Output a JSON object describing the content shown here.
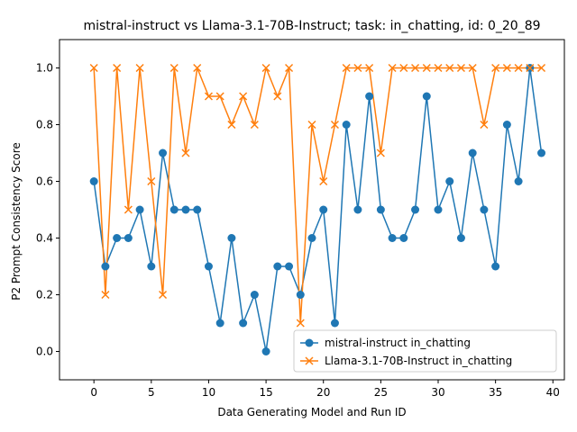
{
  "chart_data": {
    "type": "line",
    "title": "mistral-instruct vs Llama-3.1-70B-Instruct; task: in_chatting, id: 0_20_89",
    "xlabel": "Data Generating Model and Run ID",
    "ylabel": "P2 Prompt Consistency Score",
    "xlim": [
      -3,
      41
    ],
    "ylim": [
      -0.1,
      1.1
    ],
    "xticks": [
      0,
      5,
      10,
      15,
      20,
      25,
      30,
      35,
      40
    ],
    "yticks": [
      0.0,
      0.2,
      0.4,
      0.6,
      0.8,
      1.0
    ],
    "x": [
      0,
      1,
      2,
      3,
      4,
      5,
      6,
      7,
      8,
      9,
      10,
      11,
      12,
      13,
      14,
      15,
      16,
      17,
      18,
      19,
      20,
      21,
      22,
      23,
      24,
      25,
      26,
      27,
      28,
      29,
      30,
      31,
      32,
      33,
      34,
      35,
      36,
      37,
      38,
      39
    ],
    "series": [
      {
        "name": "mistral-instruct in_chatting",
        "color": "#1f77b4",
        "marker": "circle",
        "values": [
          0.6,
          0.3,
          0.4,
          0.4,
          0.5,
          0.3,
          0.7,
          0.5,
          0.5,
          0.5,
          0.3,
          0.1,
          0.4,
          0.1,
          0.2,
          0.0,
          0.3,
          0.3,
          0.2,
          0.4,
          0.5,
          0.1,
          0.8,
          0.5,
          0.9,
          0.5,
          0.4,
          0.4,
          0.5,
          0.9,
          0.5,
          0.6,
          0.4,
          0.7,
          0.5,
          0.3,
          0.8,
          0.6,
          1.0,
          0.7
        ]
      },
      {
        "name": "Llama-3.1-70B-Instruct in_chatting",
        "color": "#ff7f0e",
        "marker": "x",
        "values": [
          1.0,
          0.2,
          1.0,
          0.5,
          1.0,
          0.6,
          0.2,
          1.0,
          0.7,
          1.0,
          0.9,
          0.9,
          0.8,
          0.9,
          0.8,
          1.0,
          0.9,
          1.0,
          0.1,
          0.8,
          0.6,
          0.8,
          1.0,
          1.0,
          1.0,
          0.7,
          1.0,
          1.0,
          1.0,
          1.0,
          1.0,
          1.0,
          1.0,
          1.0,
          0.8,
          1.0,
          1.0,
          1.0,
          1.0,
          1.0
        ]
      }
    ],
    "legend_position": "lower-right",
    "grid": false
  }
}
